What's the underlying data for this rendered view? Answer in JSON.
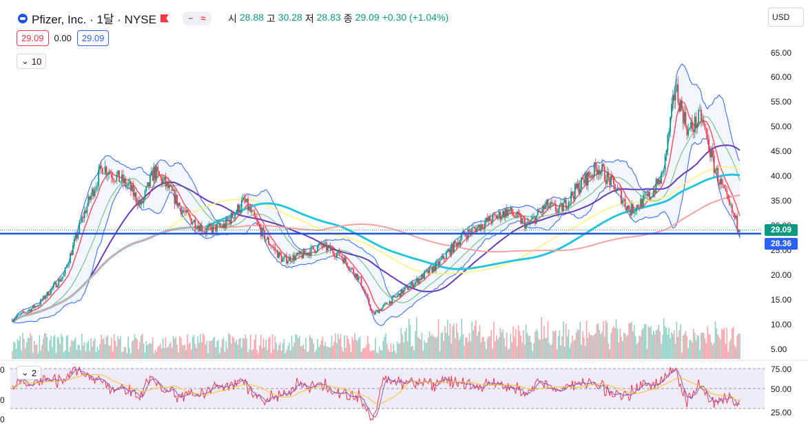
{
  "header": {
    "symbol": "Pfizer, Inc. · 1달 · NYSE",
    "open_key": "시",
    "open": "28.88",
    "high_key": "고",
    "high": "30.28",
    "low_key": "저",
    "low": "28.83",
    "close_key": "종",
    "close": "29.09",
    "change": "+0.30 (+1.04%)"
  },
  "trade": {
    "sell": "29.09",
    "spread": "0.00",
    "buy": "29.09"
  },
  "indicators_collapsed": "10",
  "pane2_collapsed": "2",
  "currency": "USD",
  "price_axis": [
    "65.00",
    "60.00",
    "55.00",
    "50.00",
    "45.00",
    "40.00",
    "35.00",
    "30.00",
    "25.00",
    "20.00",
    "15.00",
    "10.00",
    "5.00"
  ],
  "rsi_axis": [
    "75.00",
    "50.00",
    "25.00"
  ],
  "rsi_left_axis": [
    "0",
    "0",
    "0"
  ],
  "last_price_tag": "29.09",
  "line_price_tag": "28.36",
  "colors": {
    "up": "#089981",
    "down": "#f23645",
    "line": "#2962ff",
    "bb": "#2962ff"
  },
  "chart_data": {
    "type": "candlestick",
    "title": "Pfizer, Inc. · 1달 · NYSE",
    "ylim": [
      3,
      68
    ],
    "horizontal_line": 28.36,
    "last_close": 29.09,
    "keypoints": [
      [
        0,
        11
      ],
      [
        20,
        14
      ],
      [
        40,
        20
      ],
      [
        55,
        32
      ],
      [
        70,
        42
      ],
      [
        90,
        38
      ],
      [
        100,
        34
      ],
      [
        110,
        41
      ],
      [
        120,
        38
      ],
      [
        135,
        32
      ],
      [
        150,
        29
      ],
      [
        165,
        30
      ],
      [
        180,
        35
      ],
      [
        195,
        28
      ],
      [
        210,
        23
      ],
      [
        225,
        24
      ],
      [
        240,
        26
      ],
      [
        255,
        24
      ],
      [
        270,
        19
      ],
      [
        280,
        12
      ],
      [
        295,
        15
      ],
      [
        310,
        18
      ],
      [
        330,
        22
      ],
      [
        350,
        28
      ],
      [
        370,
        31
      ],
      [
        385,
        33
      ],
      [
        400,
        30
      ],
      [
        415,
        34
      ],
      [
        425,
        33
      ],
      [
        440,
        38
      ],
      [
        455,
        42
      ],
      [
        470,
        37
      ],
      [
        480,
        33
      ],
      [
        495,
        36
      ],
      [
        505,
        40
      ],
      [
        515,
        58
      ],
      [
        525,
        49
      ],
      [
        535,
        52
      ],
      [
        545,
        42
      ],
      [
        555,
        35
      ],
      [
        565,
        29.09
      ]
    ]
  }
}
